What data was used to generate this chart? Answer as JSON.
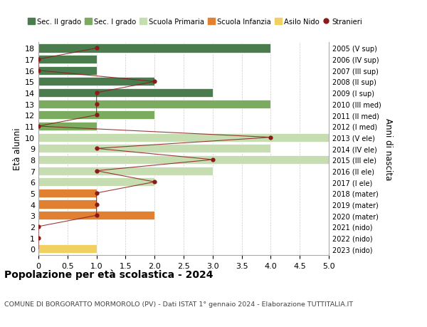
{
  "ages": [
    18,
    17,
    16,
    15,
    14,
    13,
    12,
    11,
    10,
    9,
    8,
    7,
    6,
    5,
    4,
    3,
    2,
    1,
    0
  ],
  "years": [
    "2005 (V sup)",
    "2006 (IV sup)",
    "2007 (III sup)",
    "2008 (II sup)",
    "2009 (I sup)",
    "2010 (III med)",
    "2011 (II med)",
    "2012 (I med)",
    "2013 (V ele)",
    "2014 (IV ele)",
    "2015 (III ele)",
    "2016 (II ele)",
    "2017 (I ele)",
    "2018 (mater)",
    "2019 (mater)",
    "2020 (mater)",
    "2021 (nido)",
    "2022 (nido)",
    "2023 (nido)"
  ],
  "bar_values": [
    4,
    1,
    1,
    2,
    3,
    4,
    2,
    1,
    5,
    4,
    5,
    3,
    2,
    1,
    1,
    2,
    0,
    0,
    1
  ],
  "bar_colors": [
    "#4a7c4e",
    "#4a7c4e",
    "#4a7c4e",
    "#4a7c4e",
    "#4a7c4e",
    "#7aab5e",
    "#7aab5e",
    "#7aab5e",
    "#c5ddb0",
    "#c5ddb0",
    "#c5ddb0",
    "#c5ddb0",
    "#c5ddb0",
    "#e08030",
    "#e08030",
    "#e08030",
    "#f0d060",
    "#f0d060",
    "#f0d060"
  ],
  "stranieri": [
    1,
    0,
    0,
    2,
    1,
    1,
    1,
    0,
    4,
    1,
    3,
    1,
    2,
    1,
    1,
    1,
    0,
    0,
    0
  ],
  "stranieri_show_dot": [
    true,
    true,
    true,
    true,
    true,
    true,
    true,
    true,
    true,
    true,
    true,
    true,
    true,
    true,
    true,
    true,
    true,
    true,
    false
  ],
  "stranieri_color": "#8b1a1a",
  "legend_labels": [
    "Sec. II grado",
    "Sec. I grado",
    "Scuola Primaria",
    "Scuola Infanzia",
    "Asilo Nido",
    "Stranieri"
  ],
  "legend_colors": [
    "#4a7c4e",
    "#7aab5e",
    "#c5ddb0",
    "#e08030",
    "#f0d060",
    "#8b1a1a"
  ],
  "ylabel": "Età alunni",
  "right_ylabel": "Anni di nascita",
  "xlim": [
    0,
    5.0
  ],
  "xticks": [
    0,
    0.5,
    1.0,
    1.5,
    2.0,
    2.5,
    3.0,
    3.5,
    4.0,
    4.5,
    5.0
  ],
  "xtick_labels": [
    "0",
    "0.5",
    "1.0",
    "1.5",
    "2.0",
    "2.5",
    "3.0",
    "3.5",
    "4.0",
    "4.5",
    "5.0"
  ],
  "title": "Popolazione per età scolastica - 2024",
  "subtitle": "COMUNE DI BORGORATTO MORMOROLO (PV) - Dati ISTAT 1° gennaio 2024 - Elaborazione TUTTITALIA.IT",
  "bg_color": "#ffffff",
  "grid_color": "#cccccc"
}
